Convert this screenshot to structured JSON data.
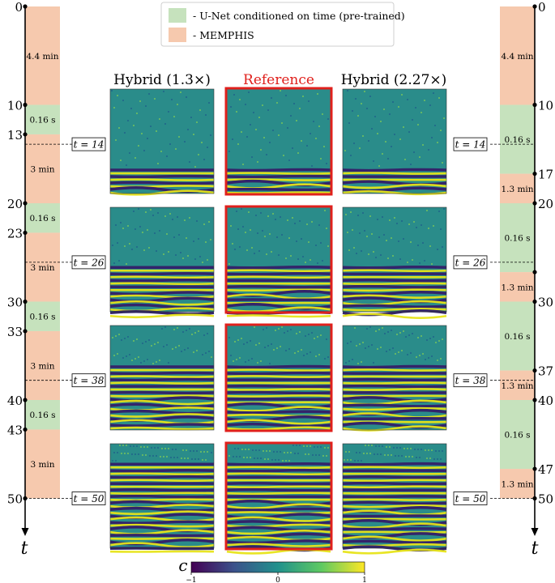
{
  "legend": {
    "items": [
      {
        "label": "- U-Net conditioned on time (pre-trained)",
        "color": "#c6e2bd"
      },
      {
        "label": "- MEMPHIS",
        "color": "#f6c9ae"
      }
    ]
  },
  "colors": {
    "unet": "#c6e2bd",
    "memphis": "#f6c9ae",
    "reference_border": "#e0201c",
    "reference_title": "#e0201c",
    "field_bg": "#2a8c8a",
    "stripe_dark": "#33246a",
    "stripe_light": "#e7e419"
  },
  "columns": [
    {
      "title": "Hybrid (1.3×)",
      "is_reference": false
    },
    {
      "title": "Reference",
      "is_reference": true
    },
    {
      "title": "Hybrid (2.27×)",
      "is_reference": false
    }
  ],
  "rows": [
    {
      "tag": "t = 14",
      "front": 0.76
    },
    {
      "tag": "t = 26",
      "front": 0.56
    },
    {
      "tag": "t = 38",
      "front": 0.38
    },
    {
      "tag": "t = 50",
      "front": 0.18
    }
  ],
  "left_axis": {
    "axis_label": "t",
    "ticks": [
      {
        "value": 0,
        "label": "0"
      },
      {
        "value": 10,
        "label": "10"
      },
      {
        "value": 13,
        "label": "13"
      },
      {
        "value": 20,
        "label": "20"
      },
      {
        "value": 23,
        "label": "23"
      },
      {
        "value": 30,
        "label": "30"
      },
      {
        "value": 33,
        "label": "33"
      },
      {
        "value": 40,
        "label": "40"
      },
      {
        "value": 43,
        "label": "43"
      },
      {
        "value": 50,
        "label": "50"
      }
    ],
    "segments": [
      {
        "from": 0,
        "to": 10,
        "method": "memphis",
        "label": "4.4 min"
      },
      {
        "from": 10,
        "to": 13,
        "method": "unet",
        "label": "0.16 s"
      },
      {
        "from": 13,
        "to": 20,
        "method": "memphis",
        "label": "3 min"
      },
      {
        "from": 20,
        "to": 23,
        "method": "unet",
        "label": "0.16 s"
      },
      {
        "from": 23,
        "to": 30,
        "method": "memphis",
        "label": "3 min"
      },
      {
        "from": 30,
        "to": 33,
        "method": "unet",
        "label": "0.16 s"
      },
      {
        "from": 33,
        "to": 40,
        "method": "memphis",
        "label": "3 min"
      },
      {
        "from": 40,
        "to": 43,
        "method": "unet",
        "label": "0.16 s"
      },
      {
        "from": 43,
        "to": 50,
        "method": "memphis",
        "label": "3 min"
      }
    ],
    "time_tags": [
      {
        "value": 14,
        "label": "t = 14"
      },
      {
        "value": 26,
        "label": "t = 26"
      },
      {
        "value": 38,
        "label": "t = 38"
      },
      {
        "value": 50,
        "label": "t = 50"
      }
    ]
  },
  "right_axis": {
    "axis_label": "t",
    "ticks": [
      {
        "value": 0,
        "label": "0"
      },
      {
        "value": 10,
        "label": "10"
      },
      {
        "value": 17,
        "label": "17"
      },
      {
        "value": 20,
        "label": "20"
      },
      {
        "value": 27,
        "label": ""
      },
      {
        "value": 30,
        "label": "30"
      },
      {
        "value": 37,
        "label": "37"
      },
      {
        "value": 40,
        "label": "40"
      },
      {
        "value": 47,
        "label": "47"
      },
      {
        "value": 50,
        "label": "50"
      }
    ],
    "segments": [
      {
        "from": 0,
        "to": 10,
        "method": "memphis",
        "label": "4.4 min"
      },
      {
        "from": 10,
        "to": 17,
        "method": "unet",
        "label": "0.16 s"
      },
      {
        "from": 17,
        "to": 20,
        "method": "memphis",
        "label": "1.3 min"
      },
      {
        "from": 20,
        "to": 27,
        "method": "unet",
        "label": "0.16 s"
      },
      {
        "from": 27,
        "to": 30,
        "method": "memphis",
        "label": "1.3 min"
      },
      {
        "from": 30,
        "to": 37,
        "method": "unet",
        "label": "0.16 s"
      },
      {
        "from": 37,
        "to": 40,
        "method": "memphis",
        "label": "1.3 min"
      },
      {
        "from": 40,
        "to": 47,
        "method": "unet",
        "label": "0.16 s"
      },
      {
        "from": 47,
        "to": 50,
        "method": "memphis",
        "label": "1.3 min"
      }
    ],
    "time_tags": [
      {
        "value": 14,
        "label": "t = 14"
      },
      {
        "value": 26,
        "label": "t = 26"
      },
      {
        "value": 38,
        "label": "t = 38"
      },
      {
        "value": 50,
        "label": "t = 50"
      }
    ]
  },
  "colorbar": {
    "label": "c",
    "min": -1,
    "max": 1,
    "ticks": [
      {
        "value": -1,
        "label": "−1"
      },
      {
        "value": 0,
        "label": "0"
      },
      {
        "value": 1,
        "label": "1"
      }
    ],
    "stops": [
      "#440154",
      "#3b528b",
      "#21918c",
      "#5ec962",
      "#fde725"
    ]
  }
}
